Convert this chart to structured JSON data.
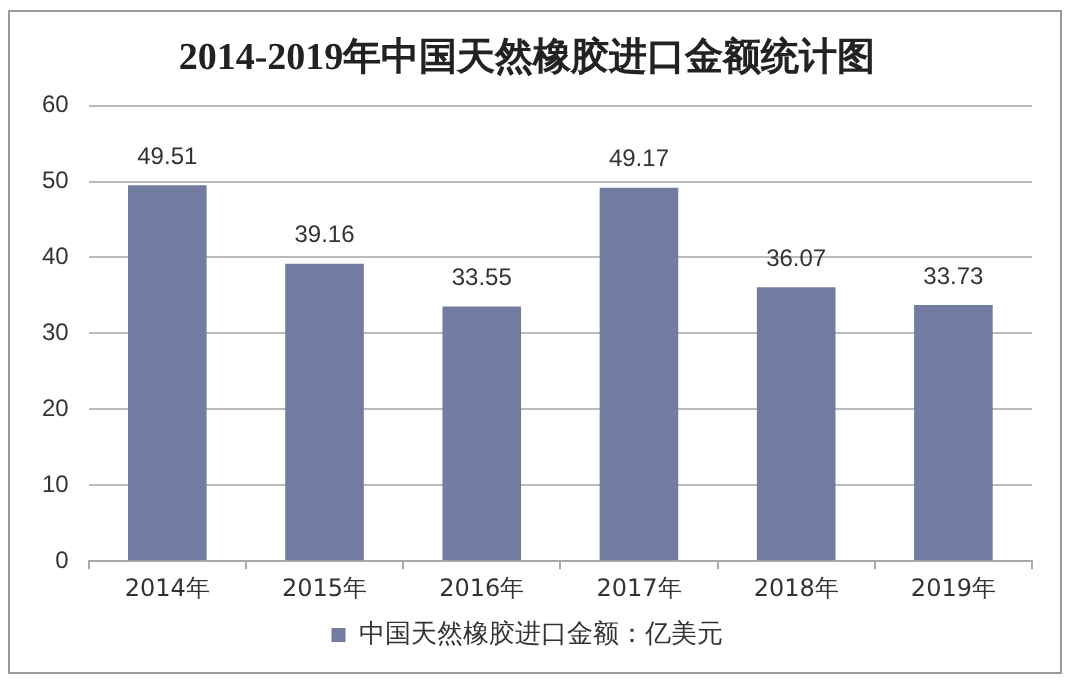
{
  "chart_data": {
    "type": "bar",
    "title": "2014-2019年中国天然橡胶进口金额统计图",
    "categories": [
      "2014年",
      "2015年",
      "2016年",
      "2017年",
      "2018年",
      "2019年"
    ],
    "series": [
      {
        "name": "中国天然橡胶进口金额：亿美元",
        "color": "#717ca0",
        "values": [
          49.51,
          39.16,
          33.55,
          49.17,
          36.07,
          33.73
        ]
      }
    ],
    "ylim": [
      0,
      60
    ],
    "yticks": [
      0,
      10,
      20,
      30,
      40,
      50,
      60
    ],
    "grid": "y",
    "legend": "bottom",
    "data_labels": true
  }
}
